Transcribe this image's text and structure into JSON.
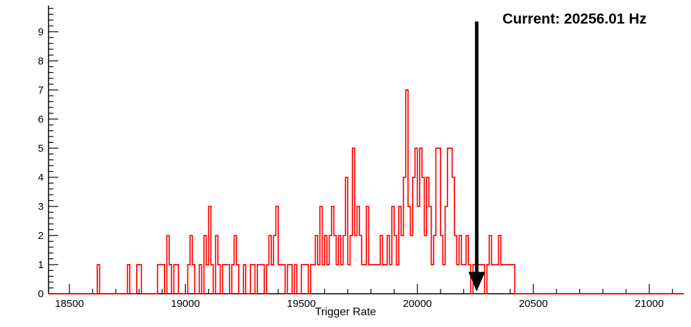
{
  "annotation": {
    "label": "Current: 20256.01 Hz"
  },
  "chart_data": {
    "type": "histogram",
    "title": "",
    "xlabel": "Trigger Rate",
    "ylabel": "",
    "xlim": [
      18410,
      21150
    ],
    "ylim": [
      0,
      9.9
    ],
    "x_major_ticks": [
      18500,
      19000,
      19500,
      20000,
      20500,
      21000
    ],
    "x_minor_step": 100,
    "y_major_ticks": [
      0,
      1,
      2,
      3,
      4,
      5,
      6,
      7,
      8,
      9
    ],
    "y_minor_step": 0.2,
    "grid": false,
    "legend": "none",
    "bin_width": 10,
    "series_color": "#ff0000",
    "axis_color": "#000000",
    "arrow": {
      "x": 20256.01,
      "color": "#000000"
    },
    "bins": [
      [
        18620,
        1
      ],
      [
        18750,
        1
      ],
      [
        18790,
        1
      ],
      [
        18800,
        1
      ],
      [
        18880,
        1
      ],
      [
        18890,
        1
      ],
      [
        18900,
        1
      ],
      [
        18920,
        2
      ],
      [
        18930,
        1
      ],
      [
        18950,
        1
      ],
      [
        18960,
        1
      ],
      [
        19010,
        1
      ],
      [
        19020,
        2
      ],
      [
        19030,
        1
      ],
      [
        19060,
        1
      ],
      [
        19080,
        2
      ],
      [
        19090,
        1
      ],
      [
        19100,
        3
      ],
      [
        19110,
        1
      ],
      [
        19130,
        2
      ],
      [
        19140,
        1
      ],
      [
        19160,
        1
      ],
      [
        19170,
        1
      ],
      [
        19180,
        1
      ],
      [
        19200,
        1
      ],
      [
        19210,
        2
      ],
      [
        19220,
        1
      ],
      [
        19250,
        1
      ],
      [
        19280,
        1
      ],
      [
        19290,
        1
      ],
      [
        19310,
        1
      ],
      [
        19320,
        1
      ],
      [
        19330,
        1
      ],
      [
        19350,
        1
      ],
      [
        19360,
        2
      ],
      [
        19370,
        1
      ],
      [
        19380,
        2
      ],
      [
        19390,
        3
      ],
      [
        19400,
        1
      ],
      [
        19410,
        1
      ],
      [
        19420,
        1
      ],
      [
        19440,
        1
      ],
      [
        19450,
        1
      ],
      [
        19470,
        1
      ],
      [
        19500,
        1
      ],
      [
        19510,
        1
      ],
      [
        19520,
        1
      ],
      [
        19540,
        1
      ],
      [
        19550,
        1
      ],
      [
        19560,
        2
      ],
      [
        19570,
        1
      ],
      [
        19580,
        3
      ],
      [
        19590,
        1
      ],
      [
        19600,
        2
      ],
      [
        19610,
        1
      ],
      [
        19620,
        2
      ],
      [
        19630,
        3
      ],
      [
        19640,
        2
      ],
      [
        19650,
        1
      ],
      [
        19660,
        2
      ],
      [
        19670,
        1
      ],
      [
        19680,
        2
      ],
      [
        19690,
        4
      ],
      [
        19700,
        1
      ],
      [
        19710,
        2
      ],
      [
        19720,
        5
      ],
      [
        19730,
        2
      ],
      [
        19740,
        3
      ],
      [
        19750,
        2
      ],
      [
        19760,
        1
      ],
      [
        19770,
        1
      ],
      [
        19780,
        3
      ],
      [
        19790,
        1
      ],
      [
        19800,
        1
      ],
      [
        19810,
        1
      ],
      [
        19820,
        1
      ],
      [
        19830,
        1
      ],
      [
        19840,
        2
      ],
      [
        19850,
        1
      ],
      [
        19860,
        1
      ],
      [
        19870,
        2
      ],
      [
        19880,
        1
      ],
      [
        19890,
        3
      ],
      [
        19900,
        2
      ],
      [
        19910,
        1
      ],
      [
        19920,
        3
      ],
      [
        19930,
        2
      ],
      [
        19940,
        4
      ],
      [
        19950,
        7
      ],
      [
        19960,
        3
      ],
      [
        19970,
        2
      ],
      [
        19980,
        4
      ],
      [
        19990,
        5
      ],
      [
        20000,
        3
      ],
      [
        20010,
        5
      ],
      [
        20020,
        4
      ],
      [
        20030,
        2
      ],
      [
        20040,
        4
      ],
      [
        20050,
        3
      ],
      [
        20060,
        1
      ],
      [
        20070,
        2
      ],
      [
        20080,
        5
      ],
      [
        20090,
        5
      ],
      [
        20100,
        2
      ],
      [
        20110,
        1
      ],
      [
        20120,
        3
      ],
      [
        20130,
        5
      ],
      [
        20140,
        5
      ],
      [
        20150,
        4
      ],
      [
        20160,
        2
      ],
      [
        20170,
        1
      ],
      [
        20180,
        2
      ],
      [
        20190,
        1
      ],
      [
        20200,
        1
      ],
      [
        20210,
        2
      ],
      [
        20220,
        1
      ],
      [
        20240,
        1
      ],
      [
        20250,
        1
      ],
      [
        20260,
        1
      ],
      [
        20270,
        1
      ],
      [
        20280,
        1
      ],
      [
        20300,
        1
      ],
      [
        20310,
        2
      ],
      [
        20320,
        1
      ],
      [
        20330,
        1
      ],
      [
        20340,
        1
      ],
      [
        20350,
        2
      ],
      [
        20360,
        1
      ],
      [
        20370,
        1
      ],
      [
        20380,
        1
      ],
      [
        20390,
        1
      ],
      [
        20400,
        1
      ],
      [
        20410,
        1
      ]
    ]
  }
}
